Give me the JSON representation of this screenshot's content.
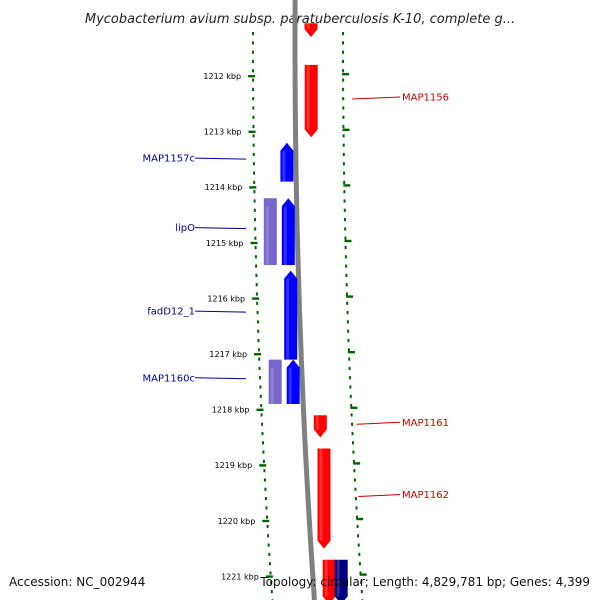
{
  "title": "Mycobacterium avium subsp. paratuberculosis K-10, complete g...",
  "accession": "Accession: NC_002944",
  "topology": "Topology: circular; Length: 4,829,781 bp; Genes: 4,399",
  "colors": {
    "forward": "#ff0000",
    "reverse": "#0000ff",
    "reverse_frame2": "#7766cc",
    "forward_frame2": "#000080",
    "backbone": "#808080",
    "ticks": "#006600",
    "forward_label": "#cc0000",
    "reverse_label": "#000099"
  },
  "kbp_labels": [
    {
      "text": "1212 kbp",
      "kbp": 1212
    },
    {
      "text": "1213 kbp",
      "kbp": 1213
    },
    {
      "text": "1214 kbp",
      "kbp": 1214
    },
    {
      "text": "1215 kbp",
      "kbp": 1215
    },
    {
      "text": "1216 kbp",
      "kbp": 1216
    },
    {
      "text": "1217 kbp",
      "kbp": 1217
    },
    {
      "text": "1218 kbp",
      "kbp": 1218
    },
    {
      "text": "1219 kbp",
      "kbp": 1219
    },
    {
      "text": "1220 kbp",
      "kbp": 1220
    },
    {
      "text": "1221 kbp",
      "kbp": 1221
    }
  ],
  "genes": [
    {
      "name": "",
      "strand": "+",
      "track": "forward",
      "start_kbp": 1211.05,
      "end_kbp": 1211.3
    },
    {
      "name": "MAP1156",
      "strand": "+",
      "track": "forward",
      "start_kbp": 1211.8,
      "end_kbp": 1213.1
    },
    {
      "name": "MAP1157c",
      "strand": "-",
      "track": "reverse",
      "start_kbp": 1213.2,
      "end_kbp": 1213.9
    },
    {
      "name": "lipO",
      "strand": "-",
      "track": "reverse_frame2",
      "start_kbp": 1214.2,
      "end_kbp": 1215.4
    },
    {
      "name": "",
      "strand": "-",
      "track": "reverse",
      "start_kbp": 1214.2,
      "end_kbp": 1215.4
    },
    {
      "name": "fadD12_1",
      "strand": "-",
      "track": "reverse",
      "start_kbp": 1215.5,
      "end_kbp": 1217.1
    },
    {
      "name": "MAP1160c",
      "strand": "-",
      "track": "reverse_frame2",
      "start_kbp": 1217.1,
      "end_kbp": 1217.9
    },
    {
      "name": "",
      "strand": "-",
      "track": "reverse",
      "start_kbp": 1217.1,
      "end_kbp": 1217.9
    },
    {
      "name": "MAP1161",
      "strand": "+",
      "track": "forward",
      "start_kbp": 1218.1,
      "end_kbp": 1218.5
    },
    {
      "name": "MAP1162",
      "strand": "+",
      "track": "forward",
      "start_kbp": 1218.7,
      "end_kbp": 1220.5
    },
    {
      "name": "",
      "strand": "+",
      "track": "forward",
      "start_kbp": 1220.7,
      "end_kbp": 1221.5
    },
    {
      "name": "",
      "strand": "+",
      "track": "forward_frame2",
      "start_kbp": 1220.7,
      "end_kbp": 1221.5
    }
  ]
}
